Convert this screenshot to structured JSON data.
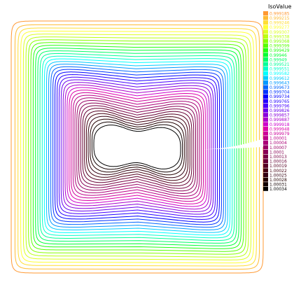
{
  "chart_data": {
    "type": "contour",
    "title": "",
    "xlabel": "",
    "ylabel": "",
    "legend_title": "IsoValue",
    "legend_placement": "right",
    "grid": false,
    "levels": [
      {
        "label": "0.999185",
        "color": "#ff9933"
      },
      {
        "label": "0.999215",
        "color": "#ffbb33"
      },
      {
        "label": "0.999246",
        "color": "#ffdd33"
      },
      {
        "label": "0.999277",
        "color": "#ffff33"
      },
      {
        "label": "0.999307",
        "color": "#ddff22"
      },
      {
        "label": "0.999338",
        "color": "#bbff11"
      },
      {
        "label": "0.999368",
        "color": "#88ff00"
      },
      {
        "label": "0.999399",
        "color": "#55ff00"
      },
      {
        "label": "0.999429",
        "color": "#22ff11"
      },
      {
        "label": "0.99946",
        "color": "#00ff33"
      },
      {
        "label": "0.99949",
        "color": "#00ff66"
      },
      {
        "label": "0.999521",
        "color": "#00ff99"
      },
      {
        "label": "0.999551",
        "color": "#00ffcc"
      },
      {
        "label": "0.999582",
        "color": "#00ffff"
      },
      {
        "label": "0.999612",
        "color": "#00ccff"
      },
      {
        "label": "0.999643",
        "color": "#0099ff"
      },
      {
        "label": "0.999673",
        "color": "#0066ff"
      },
      {
        "label": "0.999704",
        "color": "#0033ff"
      },
      {
        "label": "0.999734",
        "color": "#0000ff"
      },
      {
        "label": "0.999765",
        "color": "#2200ff"
      },
      {
        "label": "0.999796",
        "color": "#4400ff"
      },
      {
        "label": "0.999826",
        "color": "#6600ee"
      },
      {
        "label": "0.999857",
        "color": "#8800dd"
      },
      {
        "label": "0.999887",
        "color": "#aa00cc"
      },
      {
        "label": "0.999918",
        "color": "#cc00cc"
      },
      {
        "label": "0.999948",
        "color": "#dd00aa"
      },
      {
        "label": "0.999979",
        "color": "#cc0099"
      },
      {
        "label": "1.00001",
        "color": "#bb0088"
      },
      {
        "label": "1.00004",
        "color": "#aa0077"
      },
      {
        "label": "1.00007",
        "color": "#990066"
      },
      {
        "label": "1.0001",
        "color": "#880055"
      },
      {
        "label": "1.00013",
        "color": "#770044"
      },
      {
        "label": "1.00016",
        "color": "#660033"
      },
      {
        "label": "1.00019",
        "color": "#550022"
      },
      {
        "label": "1.00022",
        "color": "#440011"
      },
      {
        "label": "1.00025",
        "color": "#330011"
      },
      {
        "label": "1.00028",
        "color": "#220000"
      },
      {
        "label": "1.00031",
        "color": "#110000"
      },
      {
        "label": "1.00034",
        "color": "#000000"
      }
    ]
  }
}
